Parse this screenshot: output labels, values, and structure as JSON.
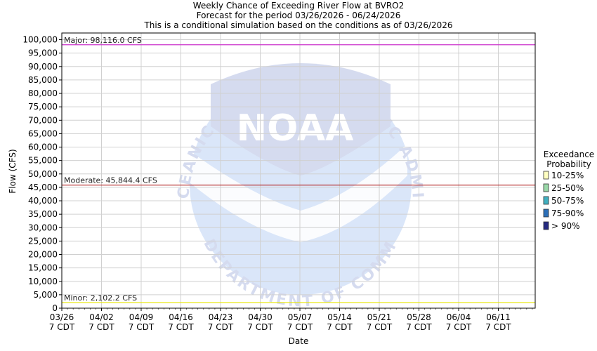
{
  "chart_data": {
    "type": "line",
    "title": "Weekly Chance of Exceeding River Flow at BVRO2",
    "subtitle": "Forecast for the period 03/26/2026 - 06/24/2026",
    "subtitle2": "This is a conditional simulation based on the conditions as of 03/26/2026",
    "xlabel": "Date",
    "ylabel": "Flow (CFS)",
    "ylim": [
      0,
      102500
    ],
    "yticks": [
      "0",
      "5,000",
      "10,000",
      "15,000",
      "20,000",
      "25,000",
      "30,000",
      "35,000",
      "40,000",
      "45,000",
      "50,000",
      "55,000",
      "60,000",
      "65,000",
      "70,000",
      "75,000",
      "80,000",
      "85,000",
      "90,000",
      "95,000",
      "100,000"
    ],
    "yvalues": [
      0,
      5000,
      10000,
      15000,
      20000,
      25000,
      30000,
      35000,
      40000,
      45000,
      50000,
      55000,
      60000,
      65000,
      70000,
      75000,
      80000,
      85000,
      90000,
      95000,
      100000
    ],
    "xticks": [
      {
        "date": "03/26",
        "sub": "7 CDT"
      },
      {
        "date": "04/02",
        "sub": "7 CDT"
      },
      {
        "date": "04/09",
        "sub": "7 CDT"
      },
      {
        "date": "04/16",
        "sub": "7 CDT"
      },
      {
        "date": "04/23",
        "sub": "7 CDT"
      },
      {
        "date": "04/30",
        "sub": "7 CDT"
      },
      {
        "date": "05/07",
        "sub": "7 CDT"
      },
      {
        "date": "05/14",
        "sub": "7 CDT"
      },
      {
        "date": "05/21",
        "sub": "7 CDT"
      },
      {
        "date": "05/28",
        "sub": "7 CDT"
      },
      {
        "date": "06/04",
        "sub": "7 CDT"
      },
      {
        "date": "06/11",
        "sub": "7 CDT"
      }
    ],
    "xrange": [
      "03/26/2026",
      "06/24/2026"
    ],
    "flood_levels": [
      {
        "label": "Major: 98,116.0 CFS",
        "value": 98116.0,
        "color": "#cc33cc"
      },
      {
        "label": "Moderate: 45,844.4 CFS",
        "value": 45844.4,
        "color": "#b22222"
      },
      {
        "label": "Minor: 2,102.2 CFS",
        "value": 2102.2,
        "color": "#e6e600"
      }
    ],
    "grid": true,
    "legend": {
      "title": "Exceedance",
      "title2": "Probability",
      "placement": "right",
      "entries": [
        {
          "label": "10-25%",
          "color": "#ffffc0"
        },
        {
          "label": "25-50%",
          "color": "#99d8a8"
        },
        {
          "label": "50-75%",
          "color": "#40b0c0"
        },
        {
          "label": "75-90%",
          "color": "#2c6fb8"
        },
        {
          "label": "> 90%",
          "color": "#252a80"
        }
      ]
    },
    "series": []
  },
  "watermark": {
    "name": "noaa-seal",
    "text": "NOAA",
    "ring_top": "NATIONAL OCEANIC AND ATMOSPHERIC ADMINISTRATION",
    "ring_bottom": "U.S. DEPARTMENT OF COMMERCE"
  }
}
